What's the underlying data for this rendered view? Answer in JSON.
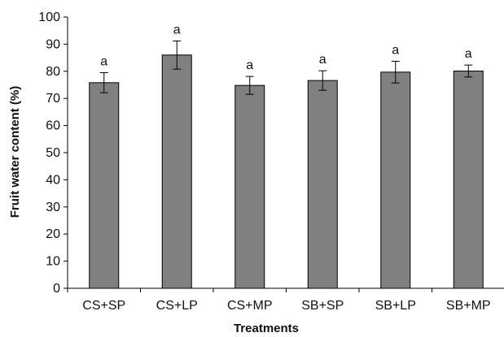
{
  "chart_data": {
    "type": "bar",
    "title": "",
    "xlabel": "Treatments",
    "ylabel": "Fruit water content (%)",
    "ylim": [
      0,
      100
    ],
    "yticks": [
      0,
      10,
      20,
      30,
      40,
      50,
      60,
      70,
      80,
      90,
      100
    ],
    "categories": [
      "CS+SP",
      "CS+LP",
      "CS+MP",
      "SB+SP",
      "SB+LP",
      "SB+MP"
    ],
    "values": [
      75.8,
      86.0,
      74.8,
      76.6,
      79.7,
      80.1
    ],
    "error": [
      3.7,
      5.2,
      3.3,
      3.6,
      4.0,
      2.2
    ],
    "significance": [
      "a",
      "a",
      "a",
      "a",
      "a",
      "a"
    ],
    "grid": false,
    "colors": {
      "bar": "#808080",
      "bar_edge": "#000000",
      "axis": "#000000"
    }
  }
}
